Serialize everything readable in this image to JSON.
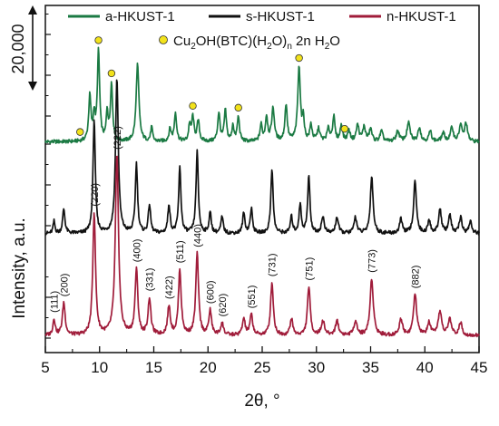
{
  "chart_data": {
    "type": "line",
    "title": "",
    "xlabel": "2θ, °",
    "ylabel": "Intensity, a.u.",
    "xlim": [
      5,
      45
    ],
    "x_ticks": [
      5,
      10,
      15,
      20,
      25,
      30,
      35,
      40,
      45
    ],
    "x_tick_labels": [
      "5",
      "10",
      "15",
      "20",
      "25",
      "30",
      "35",
      "40",
      "45"
    ],
    "y_ticks_shown": false,
    "grid": false,
    "legend_position": "top",
    "scale_bar": {
      "label": "20,000",
      "value": 20000
    },
    "series": [
      {
        "name": "a-HKUST-1",
        "color": "#1b7a43",
        "offset": 47500,
        "peaks": [
          [
            9.1,
            11000,
            0.25
          ],
          [
            9.5,
            6000,
            0.2
          ],
          [
            9.9,
            22000,
            0.25
          ],
          [
            10.7,
            7000,
            0.2
          ],
          [
            11.1,
            14000,
            0.25
          ],
          [
            13.5,
            19000,
            0.3
          ],
          [
            14.8,
            3500,
            0.2
          ],
          [
            16.5,
            3000,
            0.25
          ],
          [
            17.0,
            7000,
            0.25
          ],
          [
            18.3,
            4000,
            0.2
          ],
          [
            18.6,
            6000,
            0.25
          ],
          [
            19.1,
            5000,
            0.25
          ],
          [
            21.0,
            7000,
            0.25
          ],
          [
            21.6,
            7500,
            0.25
          ],
          [
            22.3,
            4000,
            0.2
          ],
          [
            22.8,
            6000,
            0.25
          ],
          [
            24.9,
            4000,
            0.25
          ],
          [
            25.4,
            6000,
            0.25
          ],
          [
            26.0,
            8000,
            0.3
          ],
          [
            27.2,
            9000,
            0.25
          ],
          [
            28.4,
            18000,
            0.3
          ],
          [
            28.8,
            5000,
            0.2
          ],
          [
            29.5,
            4000,
            0.25
          ],
          [
            30.2,
            3000,
            0.3
          ],
          [
            31.1,
            3000,
            0.3
          ],
          [
            31.6,
            6000,
            0.25
          ],
          [
            32.3,
            4000,
            0.25
          ],
          [
            33.0,
            2500,
            0.3
          ],
          [
            33.8,
            4000,
            0.3
          ],
          [
            34.4,
            3500,
            0.3
          ],
          [
            35.0,
            3000,
            0.3
          ],
          [
            36.0,
            2500,
            0.3
          ],
          [
            37.5,
            2500,
            0.35
          ],
          [
            38.5,
            4500,
            0.35
          ],
          [
            39.5,
            3500,
            0.3
          ],
          [
            40.5,
            2500,
            0.3
          ],
          [
            41.7,
            2000,
            0.35
          ],
          [
            42.5,
            3500,
            0.3
          ],
          [
            43.3,
            4000,
            0.3
          ],
          [
            43.8,
            4500,
            0.3
          ]
        ]
      },
      {
        "name": "s-HKUST-1",
        "color": "#111111",
        "offset": 25000,
        "peaks": [
          [
            5.8,
            3000,
            0.2
          ],
          [
            6.7,
            6000,
            0.25
          ],
          [
            9.5,
            28000,
            0.25
          ],
          [
            11.6,
            38000,
            0.3
          ],
          [
            13.4,
            17000,
            0.25
          ],
          [
            14.6,
            7000,
            0.25
          ],
          [
            16.4,
            7000,
            0.25
          ],
          [
            17.4,
            16000,
            0.25
          ],
          [
            19.0,
            20000,
            0.25
          ],
          [
            20.2,
            5000,
            0.25
          ],
          [
            21.3,
            4000,
            0.25
          ],
          [
            23.3,
            5000,
            0.25
          ],
          [
            24.0,
            6000,
            0.25
          ],
          [
            25.9,
            16000,
            0.25
          ],
          [
            27.7,
            4000,
            0.25
          ],
          [
            28.5,
            7000,
            0.25
          ],
          [
            29.3,
            14000,
            0.25
          ],
          [
            30.6,
            4000,
            0.3
          ],
          [
            31.9,
            4000,
            0.3
          ],
          [
            33.6,
            4000,
            0.3
          ],
          [
            35.1,
            14000,
            0.3
          ],
          [
            37.8,
            3500,
            0.3
          ],
          [
            39.1,
            13000,
            0.3
          ],
          [
            40.4,
            3000,
            0.3
          ],
          [
            41.4,
            6000,
            0.3
          ],
          [
            42.3,
            4500,
            0.3
          ],
          [
            43.3,
            4000,
            0.3
          ],
          [
            44.2,
            3000,
            0.3
          ]
        ]
      },
      {
        "name": "n-HKUST-1",
        "color": "#a01c3a",
        "offset": 0,
        "peaks": [
          [
            5.8,
            4000,
            0.25
          ],
          [
            6.7,
            8000,
            0.3
          ],
          [
            9.5,
            30000,
            0.3
          ],
          [
            11.6,
            44000,
            0.35
          ],
          [
            13.4,
            16000,
            0.3
          ],
          [
            14.6,
            9000,
            0.3
          ],
          [
            16.4,
            7000,
            0.3
          ],
          [
            17.4,
            16000,
            0.3
          ],
          [
            19.0,
            20000,
            0.3
          ],
          [
            20.2,
            6000,
            0.3
          ],
          [
            21.3,
            3000,
            0.3
          ],
          [
            23.3,
            4000,
            0.3
          ],
          [
            24.0,
            5000,
            0.3
          ],
          [
            25.9,
            13000,
            0.3
          ],
          [
            27.7,
            4000,
            0.3
          ],
          [
            29.3,
            12000,
            0.3
          ],
          [
            30.6,
            3500,
            0.35
          ],
          [
            31.9,
            3500,
            0.35
          ],
          [
            33.6,
            3500,
            0.35
          ],
          [
            35.1,
            14000,
            0.35
          ],
          [
            37.8,
            4000,
            0.35
          ],
          [
            39.1,
            10000,
            0.35
          ],
          [
            40.4,
            3000,
            0.35
          ],
          [
            41.4,
            6000,
            0.35
          ],
          [
            42.3,
            4000,
            0.35
          ],
          [
            43.3,
            3000,
            0.35
          ]
        ]
      }
    ],
    "secondary_phase": {
      "label_main": "Cu",
      "label_sub1": "2",
      "label_mid": "OH(BTC)(H",
      "label_sub2": "2",
      "label_mid2": "O)",
      "label_sub3": "n",
      "label_tail": " 2n H",
      "label_sub4": "2",
      "label_end": "O",
      "marker_color": "#f2e21b",
      "positions": [
        8.2,
        9.9,
        11.1,
        18.6,
        22.8,
        28.4,
        32.6
      ]
    },
    "hkl_labels": [
      {
        "text": "(111)",
        "x": 5.8
      },
      {
        "text": "(200)",
        "x": 6.7
      },
      {
        "text": "(220)",
        "x": 9.5
      },
      {
        "text": "(222)",
        "x": 11.6
      },
      {
        "text": "(400)",
        "x": 13.4
      },
      {
        "text": "(331)",
        "x": 14.6
      },
      {
        "text": "(422)",
        "x": 16.4
      },
      {
        "text": "(511)",
        "x": 17.4
      },
      {
        "text": "(440)",
        "x": 19.0
      },
      {
        "text": "(600)",
        "x": 20.2
      },
      {
        "text": "(620)",
        "x": 21.3
      },
      {
        "text": "(551)",
        "x": 24.0
      },
      {
        "text": "(731)",
        "x": 25.9
      },
      {
        "text": "(751)",
        "x": 29.3
      },
      {
        "text": "(773)",
        "x": 35.1
      },
      {
        "text": "(882)",
        "x": 39.1
      }
    ]
  }
}
